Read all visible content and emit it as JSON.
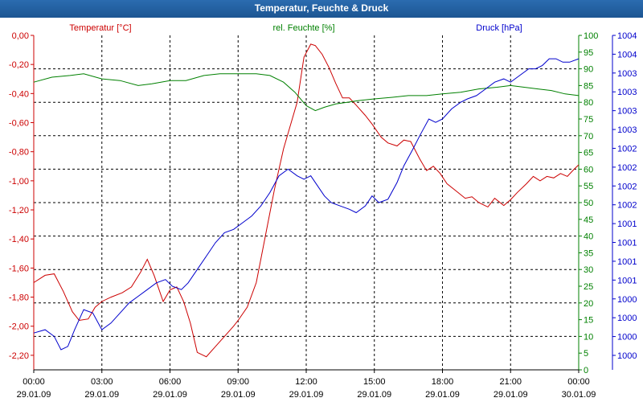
{
  "window": {
    "title": "Temperatur, Feuchte & Druck"
  },
  "colors": {
    "temperature": "#cc0000",
    "humidity": "#008000",
    "pressure": "#0000cc",
    "grid": "#000000",
    "titlebar": "#1c5592"
  },
  "chart_data": {
    "type": "line",
    "title": "Temperatur, Feuchte & Druck",
    "grid": true,
    "x_tick_labels": [
      [
        "00:00",
        "29.01.09"
      ],
      [
        "03:00",
        "29.01.09"
      ],
      [
        "06:00",
        "29.01.09"
      ],
      [
        "09:00",
        "29.01.09"
      ],
      [
        "12:00",
        "29.01.09"
      ],
      [
        "15:00",
        "29.01.09"
      ],
      [
        "18:00",
        "29.01.09"
      ],
      [
        "21:00",
        "29.01.09"
      ],
      [
        "00:00",
        "30.01.09"
      ]
    ],
    "x_range_hours": [
      0,
      24
    ],
    "axes": {
      "temperature": {
        "label": "Temperatur [°C]",
        "range": [
          -2.3,
          0.0
        ],
        "ticks": [
          "0,00",
          "-0,20",
          "-0,40",
          "-0,60",
          "-0,80",
          "-1,00",
          "-1,20",
          "-1,40",
          "-1,60",
          "-1,80",
          "-2,00",
          "-2,20"
        ]
      },
      "humidity": {
        "label": "rel. Feuchte [%]",
        "range": [
          0,
          100
        ],
        "ticks": [
          "100",
          "95",
          "90",
          "85",
          "80",
          "75",
          "70",
          "65",
          "60",
          "55",
          "50",
          "45",
          "40",
          "35",
          "30",
          "25",
          "20",
          "15",
          "10",
          "5",
          "0"
        ]
      },
      "pressure": {
        "label": "Druck [hPa]",
        "ticks": [
          "1004",
          "1004",
          "1003",
          "1003",
          "1003",
          "1003",
          "1002",
          "1002",
          "1002",
          "1002",
          "1001",
          "1001",
          "1001",
          "1001",
          "1000",
          "1000",
          "1000",
          "1000"
        ]
      }
    },
    "series": [
      {
        "name": "Temperatur [°C]",
        "axis": "temperature",
        "x": [
          0,
          0.5,
          0.9,
          1.3,
          1.7,
          2.0,
          2.4,
          2.7,
          3.0,
          3.4,
          3.9,
          4.3,
          4.7,
          5.0,
          5.3,
          5.7,
          6.0,
          6.3,
          6.6,
          6.9,
          7.2,
          7.6,
          8.0,
          8.4,
          8.8,
          9.0,
          9.4,
          9.8,
          10.2,
          10.6,
          11.0,
          11.3,
          11.6,
          11.9,
          12.2,
          12.4,
          12.7,
          13.0,
          13.3,
          13.6,
          13.9,
          14.2,
          14.6,
          14.9,
          15.3,
          15.6,
          16.0,
          16.3,
          16.6,
          17.0,
          17.3,
          17.6,
          17.9,
          18.2,
          18.6,
          19.0,
          19.3,
          19.6,
          20.0,
          20.3,
          20.7,
          21.0,
          21.3,
          21.7,
          22.0,
          22.3,
          22.6,
          22.9,
          23.2,
          23.5,
          23.8,
          24.0
        ],
        "values": [
          -1.7,
          -1.65,
          -1.64,
          -1.76,
          -1.9,
          -1.96,
          -1.95,
          -1.87,
          -1.83,
          -1.8,
          -1.77,
          -1.73,
          -1.63,
          -1.54,
          -1.65,
          -1.83,
          -1.75,
          -1.73,
          -1.83,
          -1.98,
          -2.18,
          -2.21,
          -2.14,
          -2.07,
          -2.0,
          -1.96,
          -1.87,
          -1.7,
          -1.38,
          -1.06,
          -0.78,
          -0.62,
          -0.46,
          -0.15,
          -0.06,
          -0.07,
          -0.13,
          -0.22,
          -0.33,
          -0.43,
          -0.43,
          -0.48,
          -0.55,
          -0.61,
          -0.7,
          -0.74,
          -0.76,
          -0.72,
          -0.73,
          -0.85,
          -0.93,
          -0.9,
          -0.95,
          -1.02,
          -1.07,
          -1.12,
          -1.11,
          -1.15,
          -1.18,
          -1.12,
          -1.17,
          -1.13,
          -1.08,
          -1.02,
          -0.97,
          -1.0,
          -0.97,
          -0.98,
          -0.95,
          -0.97,
          -0.92,
          -0.89
        ]
      },
      {
        "name": "rel. Feuchte [%]",
        "axis": "humidity",
        "x": [
          0,
          0.8,
          1.6,
          2.2,
          3.0,
          3.8,
          4.6,
          5.2,
          6.0,
          6.7,
          7.5,
          8.2,
          9.0,
          9.8,
          10.4,
          11.0,
          11.5,
          12.0,
          12.4,
          12.8,
          13.3,
          13.8,
          14.3,
          15.0,
          15.8,
          16.5,
          17.3,
          18.0,
          18.8,
          19.6,
          20.4,
          21.0,
          21.6,
          22.2,
          22.8,
          23.4,
          24.0
        ],
        "values": [
          86,
          87.5,
          88,
          88.5,
          87,
          86.5,
          85,
          85.5,
          86.5,
          86.5,
          88,
          88.5,
          88.5,
          88.5,
          88,
          86,
          83,
          79,
          77.5,
          78.5,
          79.5,
          80,
          80.5,
          81,
          81.5,
          82,
          82,
          82.5,
          83,
          84,
          84.5,
          85,
          84.5,
          84,
          83.5,
          82.5,
          82
        ]
      },
      {
        "name": "Druck [hPa]",
        "axis": "pressure",
        "x": [
          0,
          0.5,
          0.9,
          1.2,
          1.5,
          1.8,
          2.2,
          2.6,
          3.0,
          3.4,
          3.8,
          4.2,
          4.6,
          5.0,
          5.4,
          5.8,
          6.1,
          6.5,
          6.8,
          7.2,
          7.6,
          8.0,
          8.4,
          8.8,
          9.2,
          9.6,
          10.0,
          10.4,
          10.8,
          11.2,
          11.6,
          11.9,
          12.2,
          12.5,
          12.8,
          13.1,
          13.5,
          13.9,
          14.2,
          14.6,
          14.9,
          15.2,
          15.6,
          16.0,
          16.3,
          16.7,
          17.0,
          17.4,
          17.7,
          18.0,
          18.4,
          18.8,
          19.1,
          19.5,
          19.9,
          20.3,
          20.7,
          21.0,
          21.4,
          21.8,
          22.1,
          22.4,
          22.7,
          23.0,
          23.3,
          23.6,
          24.0
        ],
        "x_note": "pressure series plotted against its own axis ticks",
        "values": [
          11,
          12,
          10,
          6,
          7,
          12,
          18,
          17,
          12,
          14,
          17,
          20,
          22,
          24,
          26,
          27,
          25,
          24,
          26,
          30,
          34,
          38,
          41,
          42,
          44,
          46,
          49,
          53,
          58,
          60,
          58,
          57,
          58,
          55,
          52,
          50,
          49,
          48,
          47,
          49,
          52,
          50,
          51,
          56,
          61,
          66,
          70,
          75,
          74,
          75,
          78,
          80,
          81,
          82,
          84,
          86,
          87,
          86,
          88,
          90,
          90,
          91,
          93,
          93,
          92,
          92,
          93
        ],
        "pressure_range_hpa": [
          999.6,
          1004.0
        ]
      }
    ]
  }
}
